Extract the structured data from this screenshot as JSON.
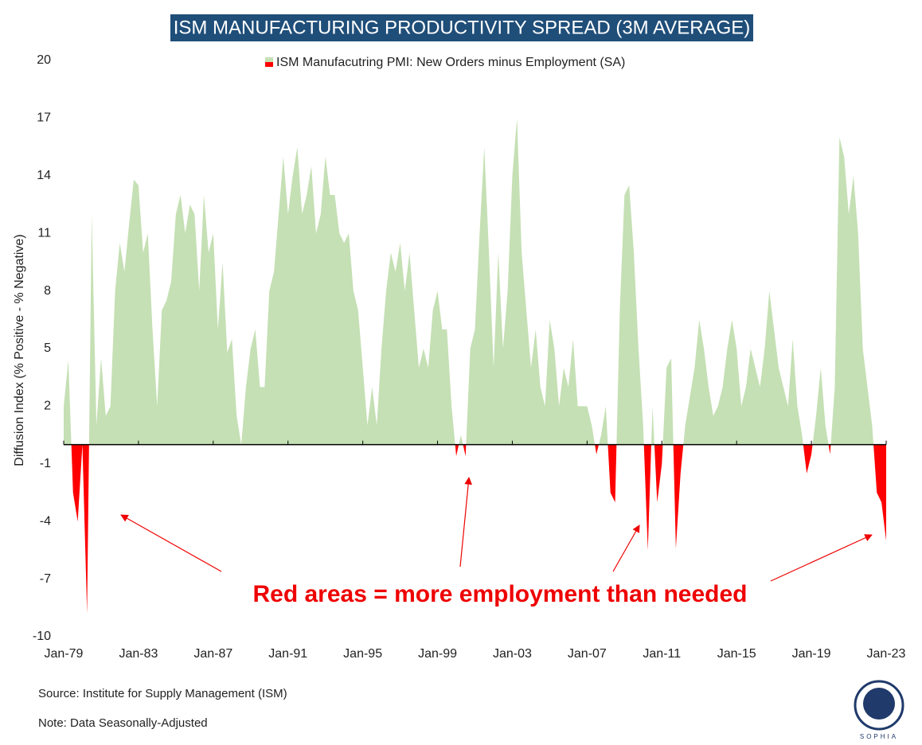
{
  "chart_data": {
    "type": "area",
    "title": "ISM MANUFACTURING PRODUCTIVITY SPREAD (3M AVERAGE)",
    "y_label": "Diffusion Index (% Positive - % Negative)",
    "annotation": "Red areas = more employment than needed",
    "source": "Source: Institute for Supply Management (ISM)",
    "note": "Note: Data Seasonally-Adjusted",
    "logo": "SOPHIA",
    "x": [
      "Jan-79",
      "Apr-79",
      "Jul-79",
      "Oct-79",
      "Jan-80",
      "Apr-80",
      "Jul-80",
      "Oct-80",
      "Jan-81",
      "Apr-81",
      "Jul-81",
      "Oct-81",
      "Jan-82",
      "Apr-82",
      "Jul-82",
      "Oct-82",
      "Jan-83",
      "Apr-83",
      "Jul-83",
      "Oct-83",
      "Jan-84",
      "Apr-84",
      "Jul-84",
      "Oct-84",
      "Jan-85",
      "Apr-85",
      "Jul-85",
      "Oct-85",
      "Jan-86",
      "Apr-86",
      "Jul-86",
      "Oct-86",
      "Jan-87",
      "Apr-87",
      "Jul-87",
      "Oct-87",
      "Jan-88",
      "Apr-88",
      "Jul-88",
      "Oct-88",
      "Jan-89",
      "Apr-89",
      "Jul-89",
      "Oct-89",
      "Jan-90",
      "Apr-90",
      "Jul-90",
      "Oct-90",
      "Jan-91",
      "Apr-91",
      "Jul-91",
      "Oct-91",
      "Jan-92",
      "Apr-92",
      "Jul-92",
      "Oct-92",
      "Jan-93",
      "Apr-93",
      "Jul-93",
      "Oct-93",
      "Jan-94",
      "Apr-94",
      "Jul-94",
      "Oct-94",
      "Jan-95",
      "Apr-95",
      "Jul-95",
      "Oct-95",
      "Jan-96",
      "Apr-96",
      "Jul-96",
      "Oct-96",
      "Jan-97",
      "Apr-97",
      "Jul-97",
      "Oct-97",
      "Jan-98",
      "Apr-98",
      "Jul-98",
      "Oct-98",
      "Jan-99",
      "Apr-99",
      "Jul-99",
      "Oct-99",
      "Jan-00",
      "Apr-00",
      "Jul-00",
      "Oct-00",
      "Jan-01",
      "Apr-01",
      "Jul-01",
      "Oct-01",
      "Jan-02",
      "Apr-02",
      "Jul-02",
      "Oct-02",
      "Jan-03",
      "Apr-03",
      "Jul-03",
      "Oct-03",
      "Jan-04",
      "Apr-04",
      "Jul-04",
      "Oct-04",
      "Jan-05",
      "Apr-05",
      "Jul-05",
      "Oct-05",
      "Jan-06",
      "Apr-06",
      "Jul-06",
      "Oct-06",
      "Jan-07",
      "Apr-07",
      "Jul-07",
      "Oct-07",
      "Jan-08",
      "Apr-08",
      "Jul-08",
      "Oct-08",
      "Jan-09",
      "Apr-09",
      "Jul-09",
      "Oct-09",
      "Jan-10",
      "Apr-10",
      "Jul-10",
      "Oct-10",
      "Jan-11",
      "Apr-11",
      "Jul-11",
      "Oct-11",
      "Jan-12",
      "Apr-12",
      "Jul-12",
      "Oct-12",
      "Jan-13",
      "Apr-13",
      "Jul-13",
      "Oct-13",
      "Jan-14",
      "Apr-14",
      "Jul-14",
      "Oct-14",
      "Jan-15",
      "Apr-15",
      "Jul-15",
      "Oct-15",
      "Jan-16",
      "Apr-16",
      "Jul-16",
      "Oct-16",
      "Jan-17",
      "Apr-17",
      "Jul-17",
      "Oct-17",
      "Jan-18",
      "Apr-18",
      "Jul-18",
      "Oct-18",
      "Jan-19",
      "Apr-19",
      "Jul-19",
      "Oct-19",
      "Jan-20",
      "Apr-20",
      "Jul-20",
      "Oct-20",
      "Jan-21",
      "Apr-21",
      "Jul-21",
      "Oct-21",
      "Jan-22",
      "Apr-22",
      "Jul-22",
      "Oct-22",
      "Jan-23"
    ],
    "series": [
      {
        "name": "ISM Manufacutring PMI: New Orders minus Employment (SA)",
        "color": "#c5e0b4",
        "negative_color": "#ff0000",
        "values": [
          2,
          4.4,
          -2.5,
          -4,
          0,
          -8.8,
          12,
          1,
          4.5,
          1.5,
          2,
          8,
          10.5,
          9,
          11.5,
          13.8,
          13.5,
          10,
          11,
          6,
          2,
          7,
          7.5,
          8.5,
          12,
          13,
          11,
          12.5,
          12,
          8,
          13,
          10,
          11,
          6,
          9.5,
          4.8,
          5.5,
          1.5,
          0,
          3,
          5,
          6,
          3,
          3,
          8,
          9,
          12,
          15,
          12,
          14,
          15.5,
          12,
          13,
          14.5,
          11,
          12,
          15,
          13,
          13,
          11,
          10.5,
          11,
          8,
          7,
          4,
          1,
          3,
          1,
          5,
          8,
          10,
          9,
          10.5,
          8,
          10,
          7,
          4,
          5,
          4,
          7,
          8,
          6,
          6,
          2,
          -0.6,
          0.5,
          -0.6,
          5,
          6,
          11,
          15.5,
          10,
          4,
          10,
          5,
          8,
          14,
          17,
          10,
          7,
          4,
          6,
          3,
          2,
          6.5,
          5,
          2,
          4,
          3,
          5.5,
          2,
          2,
          2,
          1,
          -0.5,
          0.5,
          2,
          -2.5,
          -3,
          7,
          13,
          13.5,
          10,
          5,
          1,
          -5.5,
          2,
          -3,
          -1,
          4,
          4.5,
          -5.4,
          -1.5,
          1,
          2.5,
          4,
          6.5,
          5,
          3,
          1.5,
          2,
          3,
          5,
          6.5,
          5,
          2,
          3,
          5,
          4,
          3,
          5,
          8,
          6,
          4,
          3,
          2,
          5.5,
          2,
          0.5,
          -1.5,
          -0.5,
          1.5,
          4,
          1,
          -0.5,
          3,
          16,
          15,
          12,
          14,
          11,
          5,
          3,
          1,
          -2.5,
          -3,
          -5
        ]
      }
    ],
    "ylim": [
      -10,
      20
    ],
    "yticks": [
      20,
      17,
      14,
      11,
      8,
      5,
      2,
      -1,
      -4,
      -7,
      -10
    ],
    "xticks": [
      "Jan-79",
      "Jan-83",
      "Jan-87",
      "Jan-91",
      "Jan-95",
      "Jan-99",
      "Jan-03",
      "Jan-07",
      "Jan-11",
      "Jan-15",
      "Jan-19",
      "Jan-23"
    ]
  }
}
